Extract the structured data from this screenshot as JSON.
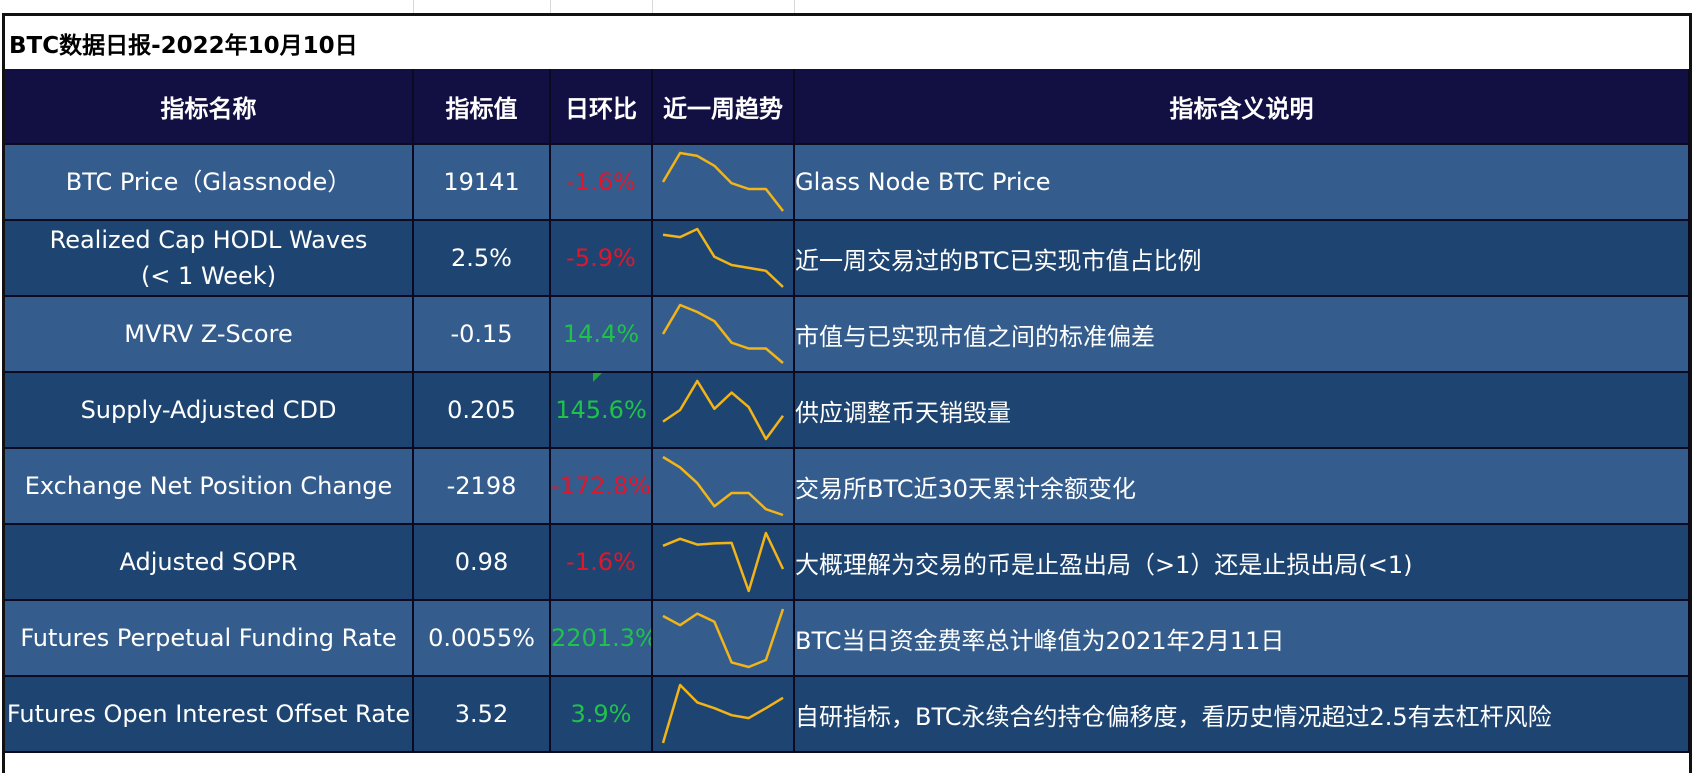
{
  "title": "BTC数据日报-2022年10月10日",
  "headers": {
    "name": "指标名称",
    "value": "指标值",
    "change": "日环比",
    "trend": "近一周趋势",
    "desc": "指标含义说明"
  },
  "colors": {
    "header_bg": "#120f42",
    "row_light": "#345d8d",
    "row_dark": "#1e4571",
    "negative": "#e0162b",
    "positive": "#1fc24a",
    "sparkline": "#f2b417"
  },
  "rows": [
    {
      "name": "BTC Price（Glassnode）",
      "value": "19141",
      "change": "-1.6%",
      "direction": "negative",
      "trend": [
        0.5,
        1.0,
        0.95,
        0.78,
        0.48,
        0.38,
        0.38,
        0.0
      ],
      "desc": "Glass Node BTC Price"
    },
    {
      "name_line1": "Realized Cap HODL Waves",
      "name_line2": "(< 1 Week)",
      "value": "2.5%",
      "change": "-5.9%",
      "direction": "negative",
      "trend": [
        0.9,
        0.86,
        1.0,
        0.52,
        0.38,
        0.33,
        0.28,
        0.0
      ],
      "desc": "近一周交易过的BTC已实现市值占比例"
    },
    {
      "name": "MVRV Z-Score",
      "value": "-0.15",
      "change": "14.4%",
      "direction": "positive",
      "trend": [
        0.5,
        1.0,
        0.88,
        0.72,
        0.35,
        0.25,
        0.25,
        0.0
      ],
      "desc": "市值与已实现市值之间的标准偏差"
    },
    {
      "name": "Supply-Adjusted CDD",
      "value": "0.205",
      "change": "145.6%",
      "direction": "positive",
      "trend": [
        0.3,
        0.5,
        1.0,
        0.52,
        0.8,
        0.55,
        0.0,
        0.4
      ],
      "desc": "供应调整币天销毁量"
    },
    {
      "name": "Exchange Net Position Change",
      "value": "-2198",
      "change": "-172.8%",
      "direction": "negative",
      "trend": [
        1.0,
        0.82,
        0.55,
        0.15,
        0.38,
        0.38,
        0.1,
        0.0
      ],
      "desc": "交易所BTC近30天累计余额变化"
    },
    {
      "name": "Adjusted SOPR",
      "value": "0.98",
      "change": "-1.6%",
      "direction": "negative",
      "trend": [
        0.78,
        0.9,
        0.8,
        0.82,
        0.83,
        0.0,
        1.0,
        0.38
      ],
      "desc": "大概理解为交易的币是止盈出局（>1）还是止损出局(<1)"
    },
    {
      "name": "Futures Perpetual Funding Rate",
      "value": "0.0055%",
      "change": "2201.3%",
      "direction": "positive",
      "trend": [
        0.88,
        0.72,
        0.92,
        0.78,
        0.08,
        0.0,
        0.12,
        1.0
      ],
      "desc": "BTC当日资金费率总计峰值为2021年2月11日"
    },
    {
      "name": "Futures Open Interest  Offset Rate",
      "value": "3.52",
      "change": "3.9%",
      "direction": "positive",
      "trend": [
        0.0,
        1.0,
        0.7,
        0.6,
        0.48,
        0.43,
        0.6,
        0.78
      ],
      "desc": "自研指标，BTC永续合约持仓偏移度，看历史情况超过2.5有去杠杆风险"
    }
  ]
}
